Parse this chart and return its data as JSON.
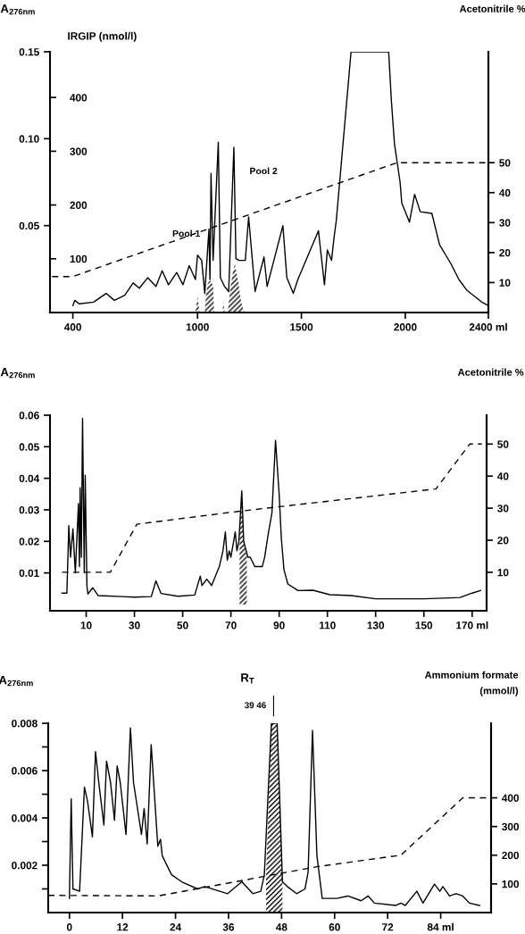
{
  "chart_data": [
    {
      "type": "line",
      "ylabel": "A$_{276nm}$",
      "y2label": "Acetonitrile %",
      "y3label": "IRGIP (nmol/l)",
      "xlim": [
        290,
        2400
      ],
      "xticks": [
        400,
        1000,
        1500,
        2000,
        {
          "value": 2400,
          "label": "2400 ml"
        }
      ],
      "ylim": [
        0,
        0.15
      ],
      "yticks": [
        0.05,
        {
          "value": 0.1,
          "label": "0.10"
        },
        0.15
      ],
      "y2lim": [
        0,
        87
      ],
      "y2ticks": [
        10,
        20,
        30,
        40,
        50
      ],
      "y3lim": [
        0,
        485
      ],
      "y3ticks": [
        100,
        200,
        300,
        400
      ],
      "series": [
        {
          "color": "#000000",
          "x": [
            400,
            410,
            430,
            500,
            560,
            600,
            650,
            690,
            720,
            760,
            800,
            830,
            860,
            900,
            930,
            960,
            990,
            1000,
            1020,
            1035,
            1055,
            1060,
            1065,
            1075,
            1100,
            1110,
            1130,
            1150,
            1175,
            1185,
            1200,
            1230,
            1246,
            1277,
            1320,
            1335,
            1411,
            1430,
            1461,
            1483,
            1582,
            1611,
            1625,
            1645,
            1657,
            1668,
            1739,
            1920,
            1933,
            1948,
            1975,
            1983,
            2020,
            2045,
            2072,
            2128,
            2165,
            2220,
            2258,
            2295,
            2368,
            2400
          ],
          "values": [
            0.004,
            0.007,
            0.005,
            0.006,
            0.011,
            0.007,
            0.01,
            0.017,
            0.014,
            0.02,
            0.015,
            0.024,
            0.016,
            0.023,
            0.016,
            0.027,
            0.019,
            0.033,
            0.03,
            0.011,
            0.048,
            0.019,
            0.08,
            0.03,
            0.098,
            0.02,
            0.015,
            0.012,
            0.095,
            0.031,
            0.03,
            0.03,
            0.055,
            0.012,
            0.032,
            0.015,
            0.05,
            0.02,
            0.011,
            0.019,
            0.047,
            0.016,
            0.036,
            0.03,
            0.043,
            0.053,
            0.15,
            0.15,
            0.122,
            0.097,
            0.075,
            0.063,
            0.052,
            0.068,
            0.058,
            0.057,
            0.039,
            0.028,
            0.019,
            0.013,
            0.006,
            0.004
          ]
        },
        {
          "axis": "y2",
          "line_style": "dashed",
          "color": "#000000",
          "x": [
            300,
            400,
            1960,
            2400
          ],
          "values": [
            12,
            12,
            50,
            50
          ]
        },
        {
          "type": "area",
          "axis": "y3",
          "color": "#000000",
          "x": [
            990,
            1000,
            1010,
            1035,
            1040,
            1050,
            1060,
            1075,
            1080,
            1120,
            1125,
            1130,
            1145,
            1160,
            1170,
            1180,
            1195,
            1210,
            1225
          ],
          "values": [
            0,
            30,
            0,
            0,
            30,
            55,
            60,
            50,
            0,
            0,
            20,
            0,
            0,
            50,
            75,
            90,
            60,
            20,
            0
          ]
        }
      ],
      "annotations": [
        {
          "text": "Pool 1",
          "x": 946,
          "y": 0.045
        },
        "Pool 2"
      ]
    },
    {
      "type": "line",
      "ylabel": "A$_{276nm}$",
      "y2label": "Acetonitrile %",
      "xlim": [
        -5,
        176
      ],
      "xticks": [
        10,
        30,
        50,
        70,
        90,
        110,
        130,
        150,
        {
          "value": 170,
          "label": "170 ml"
        }
      ],
      "ylim": [
        -0.002,
        0.06
      ],
      "yticks": [
        0.01,
        0.02,
        0.03,
        0.04,
        0.05,
        0.06
      ],
      "y2lim": [
        -2,
        59
      ],
      "y2ticks": [
        10,
        20,
        30,
        40,
        50
      ],
      "series": [
        {
          "color": "#000000",
          "x": [
            0,
            2,
            2.8,
            3.5,
            4.5,
            5.5,
            6.8,
            7.2,
            7.5,
            8,
            8.5,
            9.2,
            9.6,
            10.3,
            10.7,
            12.7,
            15,
            25,
            30,
            37,
            38.9,
            41,
            48,
            55,
            57.3,
            58,
            60,
            62,
            65.2,
            66.7,
            67.7,
            68.5,
            69.3,
            70,
            71.8,
            72.5,
            73.3,
            74.5,
            75.3,
            77,
            78,
            79.9,
            83,
            84,
            85.4,
            87,
            88.5,
            90,
            90.9,
            92,
            93.6,
            97.8,
            104,
            111,
            120,
            130,
            150,
            165,
            170,
            173.5
          ],
          "values": [
            0.0036,
            0.0036,
            0.025,
            0.015,
            0.024,
            0.01,
            0.032,
            0.012,
            0.037,
            0.015,
            0.059,
            0.01,
            0.041,
            0.006,
            0.0033,
            0.0053,
            0.0028,
            0.0025,
            0.0023,
            0.0025,
            0.0075,
            0.0035,
            0.0026,
            0.003,
            0.009,
            0.006,
            0.008,
            0.006,
            0.012,
            0.017,
            0.023,
            0.014,
            0.017,
            0.015,
            0.023,
            0.017,
            0.02,
            0.036,
            0.02,
            0.015,
            0.015,
            0.012,
            0.012,
            0.015,
            0.022,
            0.029,
            0.052,
            0.035,
            0.021,
            0.011,
            0.0065,
            0.0044,
            0.0045,
            0.0031,
            0.0028,
            0.0018,
            0.0018,
            0.0022,
            0.0036,
            0.0044
          ]
        },
        {
          "axis": "y2",
          "line_style": "dashed",
          "color": "#000000",
          "x": [
            0,
            20,
            31,
            73,
            155,
            169,
            174
          ],
          "values": [
            10,
            10,
            25,
            29,
            36,
            50,
            50
          ]
        },
        {
          "type": "area",
          "color": "#000000",
          "x": [
            73.6,
            74.5,
            75.3,
            76.6
          ],
          "values": [
            0.023,
            0.036,
            0.02,
            0.015
          ]
        }
      ]
    },
    {
      "type": "line",
      "ylabel": "A$_{276nm}$",
      "y2label": "Ammonium formate\n(mmol/l)",
      "xlim": [
        -4.8,
        95.4
      ],
      "xticks": [
        0,
        12,
        24,
        36,
        48,
        60,
        72,
        {
          "value": 84,
          "label": "84 ml"
        }
      ],
      "ylim": [
        0,
        0.008
      ],
      "yticks": [
        {
          "value": 0.001,
          "label": null
        },
        0.002,
        {
          "value": 0.003,
          "label": null
        },
        0.004,
        {
          "value": 0.005,
          "label": null
        },
        0.006,
        {
          "value": 0.007,
          "label": null
        },
        0.008
      ],
      "y2lim": [
        0,
        660
      ],
      "y2ticks": [
        100,
        200,
        300,
        400
      ],
      "series": [
        {
          "color": "#000000",
          "x": [
            0,
            0.4,
            0.8,
            2.3,
            3.4,
            4.1,
            5.2,
            5.9,
            6.7,
            7.8,
            8.4,
            9.3,
            10.2,
            10.8,
            11.5,
            12.8,
            13.8,
            14.5,
            16.3,
            16.9,
            17.6,
            18.5,
            20,
            20.6,
            21,
            23.1,
            25.4,
            29,
            30.6,
            35.8,
            39,
            41.5,
            43.3,
            44.1,
            45.7,
            47,
            48.2,
            49.3,
            51.4,
            53.3,
            54,
            55,
            56,
            57.2,
            60.5,
            63,
            66,
            67.6,
            69,
            73.8,
            75,
            76,
            78.6,
            80,
            82.6,
            83.8,
            84.5,
            86,
            87.5,
            89,
            90.5,
            92.8
          ],
          "values": [
            0.0006,
            0.0048,
            0.001,
            0.0009,
            0.0053,
            0.0047,
            0.0032,
            0.0068,
            0.0054,
            0.0037,
            0.0064,
            0.0055,
            0.0039,
            0.0062,
            0.0055,
            0.0033,
            0.0078,
            0.0055,
            0.0033,
            0.0044,
            0.0029,
            0.0071,
            0.0028,
            0.0031,
            0.0024,
            0.0016,
            0.0013,
            0.001,
            0.0011,
            0.0008,
            0.0013,
            0.0008,
            0.0009,
            0.0016,
            0.008,
            0.008,
            0.0013,
            0.0011,
            0.0008,
            0.001,
            0.0017,
            0.0077,
            0.0024,
            0.0006,
            0.0006,
            0.0007,
            0.0005,
            0.0007,
            0.0004,
            0.0003,
            0.0004,
            0.0003,
            0.0009,
            0.0004,
            0.0012,
            0.0009,
            0.0011,
            0.0007,
            0.0008,
            0.0007,
            0.0004,
            0.0003
          ]
        },
        {
          "axis": "y2",
          "line_style": "dashed",
          "color": "#000000",
          "x": [
            -4.8,
            20,
            30,
            56,
            75,
            89,
            95.4
          ],
          "values": [
            60,
            58,
            86,
            160,
            200,
            400,
            400
          ]
        },
        {
          "type": "area",
          "color": "#000000",
          "x": [
            44.5,
            45.7,
            47,
            48.2
          ],
          "values": [
            0.0016,
            0.008,
            0.008,
            0.0013
          ]
        }
      ],
      "annotations": [
        "R$_{T}$",
        {
          "text": "39 46",
          "x": 46.2,
          "y": 0.008
        }
      ]
    }
  ]
}
